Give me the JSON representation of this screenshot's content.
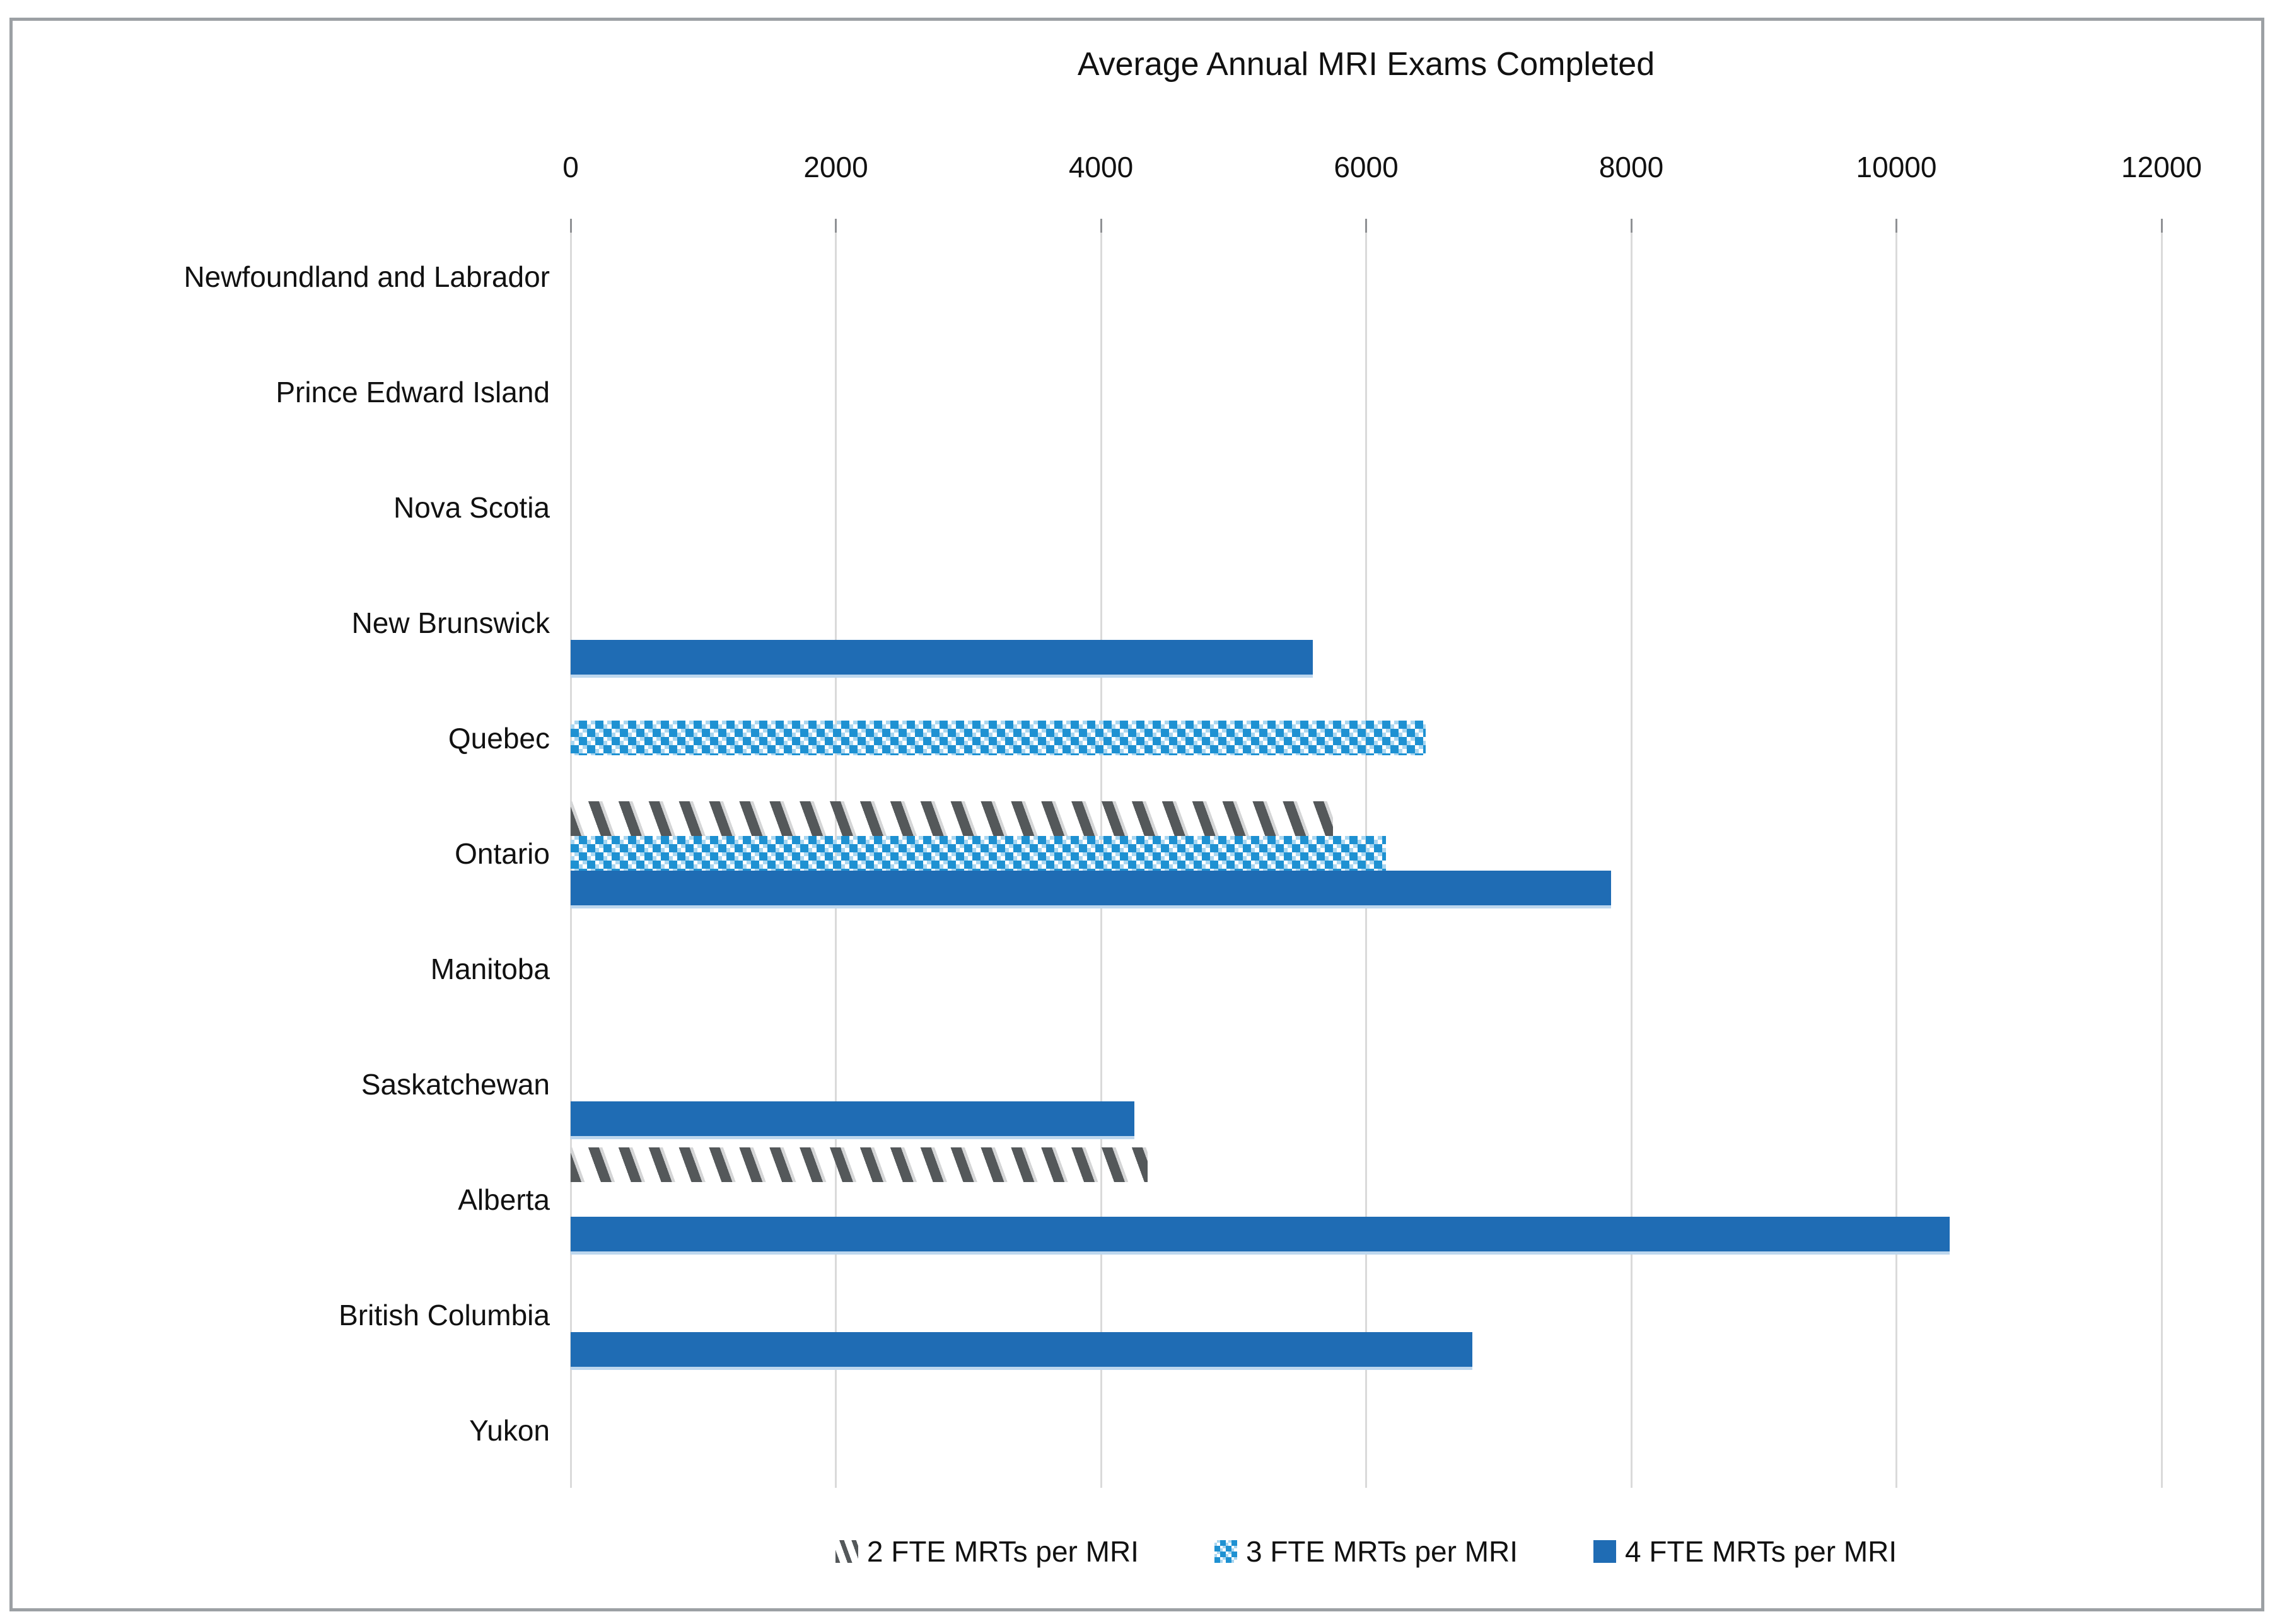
{
  "title": "Average Annual MRI Exams Completed",
  "colors": {
    "solid_bar": "#1F6CB4",
    "solid_bar_shadow": "#BDD7EE",
    "dotted_bar": "#1E91D2",
    "dotted_bar_shadow": "#A9D6F0",
    "hatch_bar": "#54585A",
    "gridline": "#DADADA",
    "frame_border": "#9CA0A4",
    "text": "#111111"
  },
  "chart_data": {
    "type": "bar",
    "orientation": "horizontal",
    "title": "Average Annual MRI Exams Completed",
    "categories": [
      "Newfoundland and Labrador",
      "Prince Edward Island",
      "Nova Scotia",
      "New Brunswick",
      "Quebec",
      "Ontario",
      "Manitoba",
      "Saskatchewan",
      "Alberta",
      "British Columbia",
      "Yukon"
    ],
    "series": [
      {
        "name": "2 FTE MRTs per MRI",
        "style": "diagonal-hatch-gray",
        "values": [
          null,
          null,
          null,
          null,
          null,
          5750,
          null,
          null,
          4350,
          null,
          null
        ]
      },
      {
        "name": "3 FTE MRTs per MRI",
        "style": "dotted-checker-blue",
        "values": [
          null,
          null,
          null,
          null,
          6450,
          6150,
          null,
          null,
          null,
          null,
          null
        ]
      },
      {
        "name": "4 FTE MRTs per MRI",
        "style": "solid-blue",
        "values": [
          null,
          null,
          null,
          5600,
          null,
          7850,
          null,
          4250,
          10400,
          6800,
          null
        ]
      }
    ],
    "x_axis": {
      "min": 0,
      "max": 12000,
      "tick_interval": 2000,
      "tick_labels": [
        "0",
        "2000",
        "4000",
        "6000",
        "8000",
        "10000",
        "12000"
      ]
    },
    "grid": true,
    "legend_position": "bottom"
  }
}
